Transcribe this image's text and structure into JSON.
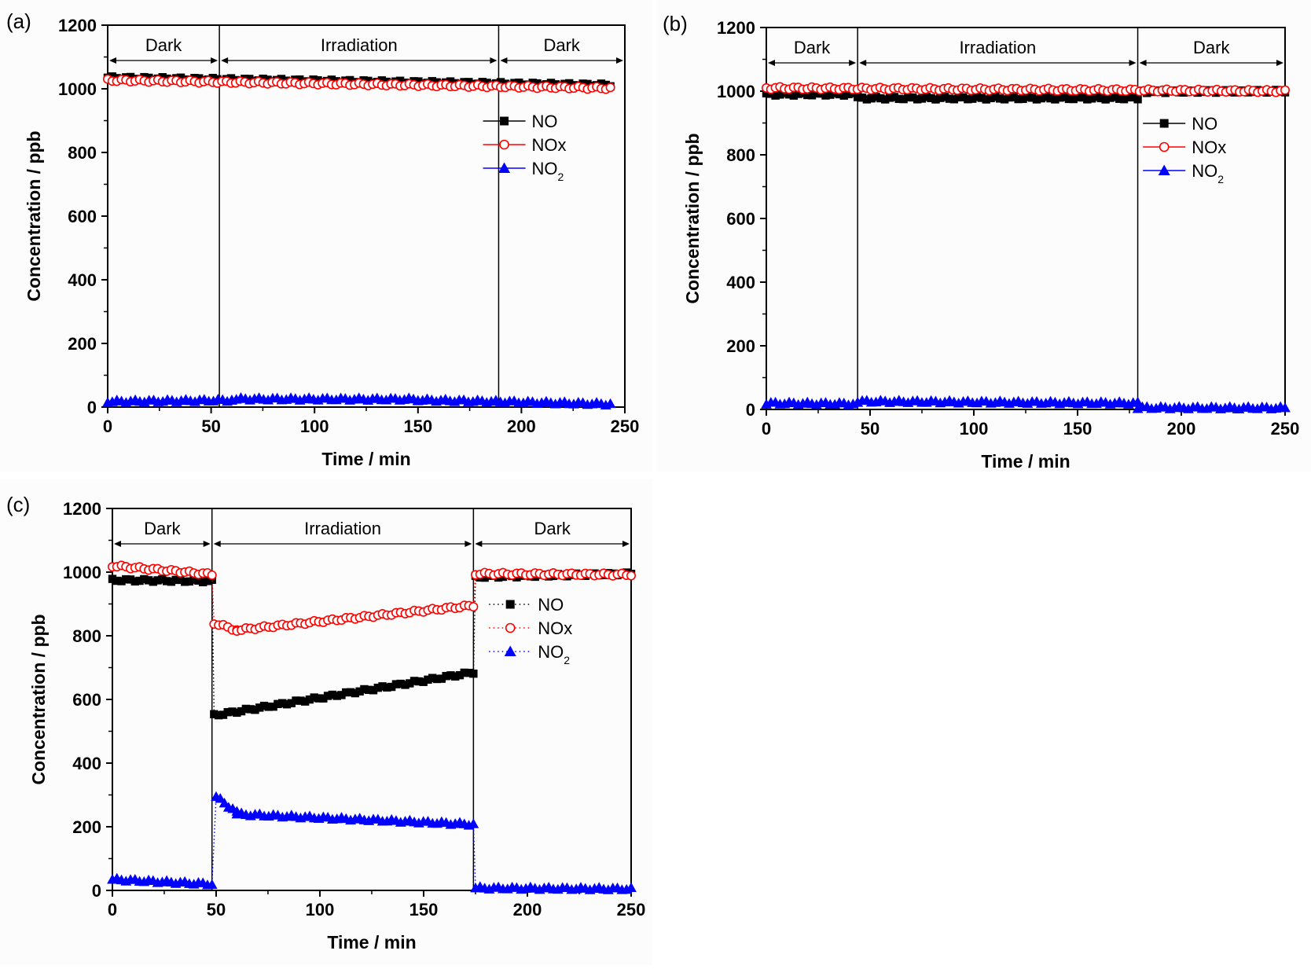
{
  "chart_data": [
    {
      "panel": "(a)",
      "type": "scatter",
      "xlabel": "Time / min",
      "ylabel": "Concentration / ppb",
      "xlim": [
        0,
        250
      ],
      "ylim": [
        0,
        1200
      ],
      "xticks": [
        "0",
        "50",
        "100",
        "150",
        "200",
        "250"
      ],
      "yticks": [
        "0",
        "200",
        "400",
        "600",
        "800",
        "1000",
        "1200"
      ],
      "grid": false,
      "legend_position": "right",
      "line_style": "solid",
      "periods": [
        {
          "label": "Dark",
          "start": 0,
          "end": 54
        },
        {
          "label": "Irradiation",
          "start": 54,
          "end": 189
        },
        {
          "label": "Dark",
          "start": 189,
          "end": 250
        }
      ],
      "series": [
        {
          "name": "NO",
          "legend_label": "NO",
          "color": "#000000",
          "marker": "square",
          "segments": [
            {
              "t0": 0,
              "t1": 243,
              "v0": 1035,
              "v1": 1012
            }
          ]
        },
        {
          "name": "NOx",
          "legend_label": "NOx",
          "color": "#ff0000",
          "marker": "open-circle",
          "segments": [
            {
              "t0": 0,
              "t1": 243,
              "v0": 1027,
              "v1": 1002
            }
          ]
        },
        {
          "name": "NO2",
          "legend_label": "NO",
          "legend_sub": "2",
          "color": "#0000ff",
          "marker": "triangle",
          "segments": [
            {
              "t0": 0,
              "t1": 60,
              "v0": 18,
              "v1": 22
            },
            {
              "t0": 60,
              "t1": 150,
              "v0": 26,
              "v1": 25
            },
            {
              "t0": 150,
              "t1": 243,
              "v0": 23,
              "v1": 10
            }
          ]
        }
      ]
    },
    {
      "panel": "(b)",
      "type": "scatter",
      "xlabel": "Time / min",
      "ylabel": "Concentration / ppb",
      "xlim": [
        0,
        250
      ],
      "ylim": [
        0,
        1200
      ],
      "xticks": [
        "0",
        "50",
        "100",
        "150",
        "200",
        "250"
      ],
      "yticks": [
        "0",
        "200",
        "400",
        "600",
        "800",
        "1000",
        "1200"
      ],
      "grid": false,
      "legend_position": "right",
      "line_style": "solid",
      "periods": [
        {
          "label": "Dark",
          "start": 0,
          "end": 44
        },
        {
          "label": "Irradiation",
          "start": 44,
          "end": 179
        },
        {
          "label": "Dark",
          "start": 179,
          "end": 250
        }
      ],
      "series": [
        {
          "name": "NO",
          "legend_label": "NO",
          "color": "#000000",
          "marker": "square",
          "segments": [
            {
              "t0": 0,
              "t1": 44,
              "v0": 990,
              "v1": 990
            },
            {
              "t0": 44,
              "t1": 179,
              "v0": 978,
              "v1": 978
            },
            {
              "t0": 179,
              "t1": 250,
              "v0": 998,
              "v1": 1000
            }
          ]
        },
        {
          "name": "NOx",
          "legend_label": "NOx",
          "color": "#ff0000",
          "marker": "open-circle",
          "segments": [
            {
              "t0": 0,
              "t1": 250,
              "v0": 1010,
              "v1": 1000
            }
          ]
        },
        {
          "name": "NO2",
          "legend_label": "NO",
          "legend_sub": "2",
          "color": "#0000ff",
          "marker": "triangle",
          "segments": [
            {
              "t0": 0,
              "t1": 44,
              "v0": 20,
              "v1": 18
            },
            {
              "t0": 44,
              "t1": 179,
              "v0": 26,
              "v1": 20
            },
            {
              "t0": 179,
              "t1": 250,
              "v0": 6,
              "v1": 5
            }
          ]
        }
      ]
    },
    {
      "panel": "(c)",
      "type": "scatter",
      "xlabel": "Time / min",
      "ylabel": "Concentration / ppb",
      "xlim": [
        0,
        250
      ],
      "ylim": [
        0,
        1200
      ],
      "xticks": [
        "0",
        "50",
        "100",
        "150",
        "200",
        "250"
      ],
      "yticks": [
        "0",
        "200",
        "400",
        "600",
        "800",
        "1000",
        "1200"
      ],
      "grid": false,
      "legend_position": "right",
      "line_style": "dotted",
      "periods": [
        {
          "label": "Dark",
          "start": 0,
          "end": 48
        },
        {
          "label": "Irradiation",
          "start": 48,
          "end": 174
        },
        {
          "label": "Dark",
          "start": 174,
          "end": 250
        }
      ],
      "series": [
        {
          "name": "NO",
          "legend_label": "NO",
          "color": "#000000",
          "marker": "square",
          "segments": [
            {
              "t0": 0,
              "t1": 48,
              "v0": 975,
              "v1": 972
            },
            {
              "t0": 49,
              "t1": 174,
              "v0": 550,
              "v1": 685
            },
            {
              "t0": 175,
              "t1": 250,
              "v0": 985,
              "v1": 995
            }
          ]
        },
        {
          "name": "NOx",
          "legend_label": "NOx",
          "color": "#ff0000",
          "marker": "open-circle",
          "segments": [
            {
              "t0": 0,
              "t1": 48,
              "v0": 1020,
              "v1": 993
            },
            {
              "t0": 49,
              "t1": 60,
              "v0": 840,
              "v1": 818
            },
            {
              "t0": 60,
              "t1": 174,
              "v0": 818,
              "v1": 895
            },
            {
              "t0": 175,
              "t1": 250,
              "v0": 995,
              "v1": 992
            }
          ]
        },
        {
          "name": "NO2",
          "legend_label": "NO",
          "legend_sub": "2",
          "color": "#0000ff",
          "marker": "triangle",
          "segments": [
            {
              "t0": 0,
              "t1": 48,
              "v0": 35,
              "v1": 20
            },
            {
              "t0": 50,
              "t1": 60,
              "v0": 295,
              "v1": 245
            },
            {
              "t0": 60,
              "t1": 174,
              "v0": 240,
              "v1": 208
            },
            {
              "t0": 175,
              "t1": 250,
              "v0": 8,
              "v1": 5
            }
          ]
        }
      ]
    }
  ]
}
